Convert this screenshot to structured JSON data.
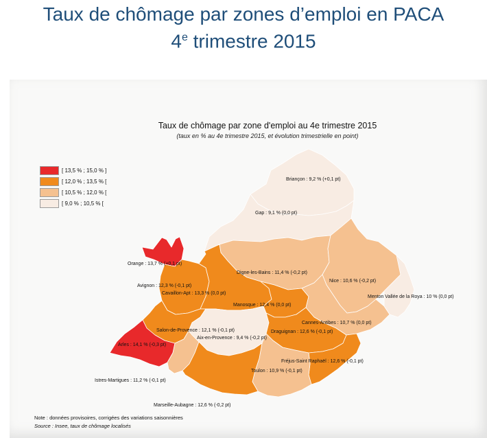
{
  "header": {
    "title_line1": "Taux de chômage par zones d’emploi en PACA",
    "title_line2_number": "4",
    "title_line2_sup": "e",
    "title_line2_rest": " trimestre 2015"
  },
  "map": {
    "title": "Taux de chômage par zone d'emploi au 4e trimestre 2015",
    "subtitle": "(taux en % au 4e trimestre 2015, et évolution trimestrielle en point)"
  },
  "legend": [
    {
      "label": "[ 13,5 % ; 15,0 % ]",
      "color": "#e8292b"
    },
    {
      "label": "[ 12,0 % ; 13,5 % [",
      "color": "#f08a1c"
    },
    {
      "label": "[ 10,5 % ; 12,0 % [",
      "color": "#f5c190"
    },
    {
      "label": "[ 9,0 % ; 10,5 % [",
      "color": "#f8ece3"
    }
  ],
  "zones": {
    "briancon": {
      "label": "Briançon : 9,2 % (+0,1 pt)",
      "rate": 9.2,
      "change": 0.1
    },
    "gap": {
      "label": "Gap : 9,1 % (0,0 pt)",
      "rate": 9.1,
      "change": 0.0
    },
    "orange": {
      "label": "Orange : 13,7 % (+0,1 pt)",
      "rate": 13.7,
      "change": 0.1
    },
    "digne": {
      "label": "Digne-les-Bains : 11,4 % (-0,2 pt)",
      "rate": 11.4,
      "change": -0.2
    },
    "nice": {
      "label": "Nice : 10,6 % (-0,2 pt)",
      "rate": 10.6,
      "change": -0.2
    },
    "avignon": {
      "label": "Avignon : 12,3 % (-0,1 pt)",
      "rate": 12.3,
      "change": -0.1
    },
    "cavaillon": {
      "label": "Cavaillon-Apt : 13,3 % (0,0 pt)",
      "rate": 13.3,
      "change": 0.0
    },
    "menton": {
      "label": "Menton Vallée de la Roya : 10 % (0,0 pt)",
      "rate": 10.0,
      "change": 0.0
    },
    "manosque": {
      "label": "Manosque : 12,4 % (0,0 pt)",
      "rate": 12.4,
      "change": 0.0
    },
    "cannes": {
      "label": "Cannes-Antibes : 10,7 % (0,0 pt)",
      "rate": 10.7,
      "change": 0.0
    },
    "salon": {
      "label": "Salon-de-Provence : 12,1 % (-0,1 pt)",
      "rate": 12.1,
      "change": -0.1
    },
    "aix": {
      "label": "Aix-en-Provence : 9,4 % (-0,2 pt)",
      "rate": 9.4,
      "change": -0.2
    },
    "draguignan": {
      "label": "Draguignan : 12,6 % (-0,1 pt)",
      "rate": 12.6,
      "change": -0.1
    },
    "arles": {
      "label": "Arles : 14,1 % (-0,3 pt)",
      "rate": 14.1,
      "change": -0.3
    },
    "frejus": {
      "label": "Fréjus-Saint Raphaël : 12,6 % (-0,1 pt)",
      "rate": 12.6,
      "change": -0.1
    },
    "toulon": {
      "label": "Toulon : 10,9 % (-0,1 pt)",
      "rate": 10.9,
      "change": -0.1
    },
    "istres": {
      "label": "Istres-Martigues : 11,2 % (-0,1 pt)",
      "rate": 11.2,
      "change": -0.1
    },
    "marseille": {
      "label": "Marseille-Aubagne : 12,6 % (-0,2 pt)",
      "rate": 12.6,
      "change": -0.2
    }
  },
  "notes": {
    "note": "Note : données provisoires, corrigées des variations saisonnières",
    "source": "Source : Insee, taux de chômage localisés"
  }
}
